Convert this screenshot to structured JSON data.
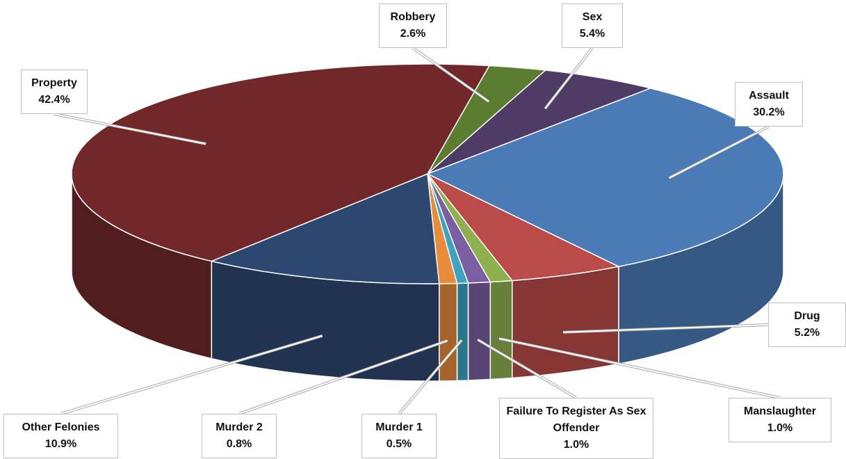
{
  "chart_data": {
    "type": "pie3d",
    "categories": [
      "Robbery",
      "Sex",
      "Assault",
      "Drug",
      "Manslaughter",
      "Failure To Register As Sex Offender",
      "Murder 1",
      "Murder 2",
      "Other Felonies",
      "Property"
    ],
    "values": [
      2.6,
      5.4,
      30.2,
      5.2,
      1.0,
      1.0,
      0.5,
      0.8,
      10.9,
      42.4
    ],
    "value_labels": [
      "2.6%",
      "5.4%",
      "30.2%",
      "5.2%",
      "1.0%",
      "1.0%",
      "0.5%",
      "0.8%",
      "10.9%",
      "42.4%"
    ],
    "colors": [
      "#5b7d2f",
      "#4e3b66",
      "#4a7bb6",
      "#ba4b49",
      "#8fb04f",
      "#7a60a2",
      "#3aa4c2",
      "#e88b3b",
      "#2c4871",
      "#722829"
    ]
  }
}
